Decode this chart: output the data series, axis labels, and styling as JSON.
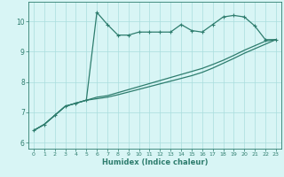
{
  "xlabel": "Humidex (Indice chaleur)",
  "x_values": [
    0,
    1,
    2,
    3,
    4,
    5,
    6,
    7,
    8,
    9,
    10,
    11,
    12,
    13,
    14,
    15,
    16,
    17,
    18,
    19,
    20,
    21,
    22,
    23
  ],
  "line1_y": [
    6.4,
    6.6,
    6.9,
    7.2,
    7.3,
    7.4,
    10.3,
    9.9,
    9.55,
    9.55,
    9.65,
    9.65,
    9.65,
    9.65,
    9.9,
    9.7,
    9.65,
    9.9,
    10.15,
    10.2,
    10.15,
    9.85,
    9.4,
    9.4
  ],
  "line2_y": [
    6.4,
    6.6,
    6.9,
    7.2,
    7.3,
    7.4,
    7.5,
    7.55,
    7.65,
    7.75,
    7.85,
    7.95,
    8.05,
    8.15,
    8.25,
    8.35,
    8.45,
    8.58,
    8.72,
    8.88,
    9.05,
    9.2,
    9.35,
    9.4
  ],
  "line3_y": [
    6.4,
    6.6,
    6.9,
    7.2,
    7.3,
    7.4,
    7.45,
    7.5,
    7.58,
    7.67,
    7.76,
    7.85,
    7.94,
    8.03,
    8.12,
    8.21,
    8.32,
    8.46,
    8.62,
    8.78,
    8.95,
    9.1,
    9.25,
    9.4
  ],
  "line_color": "#2e7d6e",
  "bg_color": "#d8f5f5",
  "grid_color": "#aadddd",
  "ylim": [
    5.8,
    10.65
  ],
  "xlim": [
    -0.5,
    23.5
  ],
  "yticks": [
    6,
    7,
    8,
    9,
    10
  ],
  "xticks": [
    0,
    1,
    2,
    3,
    4,
    5,
    6,
    7,
    8,
    9,
    10,
    11,
    12,
    13,
    14,
    15,
    16,
    17,
    18,
    19,
    20,
    21,
    22,
    23
  ]
}
